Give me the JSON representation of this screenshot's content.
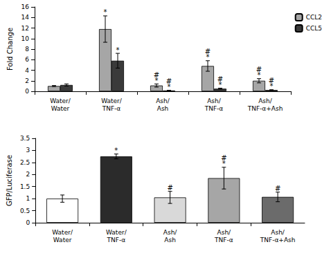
{
  "chart_data": [
    {
      "type": "bar",
      "y_label": "Fold Change",
      "categories": [
        "Water/\nWater",
        "Water/\nTNF-α",
        "Ash/\nAsh",
        "Ash/\nTNF-α",
        "Ash/\nTNF-α+Ash"
      ],
      "series": [
        {
          "name": "CCL2",
          "color": "#a6a6a6",
          "values": [
            1.0,
            11.8,
            1.1,
            4.8,
            2.0
          ],
          "errors": [
            0.1,
            2.5,
            0.3,
            1.0,
            0.4
          ],
          "annotations": [
            null,
            "*",
            "#\n*",
            "#\n*",
            "#\n*"
          ]
        },
        {
          "name": "CCL5",
          "color": "#3a3a3a",
          "values": [
            1.2,
            5.8,
            0.15,
            0.5,
            0.25
          ],
          "errors": [
            0.2,
            1.4,
            0.05,
            0.1,
            0.05
          ],
          "annotations": [
            null,
            "*",
            "#\n*",
            "#\n*",
            "#\n*"
          ]
        }
      ],
      "ylim": [
        0,
        16
      ],
      "yticks": [
        0,
        2,
        4,
        6,
        8,
        10,
        12,
        14,
        16
      ],
      "grid": false,
      "legend": "top-right"
    },
    {
      "type": "bar",
      "y_label": "GFP/Luciferase",
      "categories": [
        "Water/\nWater",
        "Water/\nTNF-α",
        "Ash/\nAsh",
        "Ash/\nTNF-α",
        "Ash/\nTNF-α+Ash"
      ],
      "values": [
        1.0,
        2.75,
        1.05,
        1.85,
        1.07
      ],
      "errors": [
        0.15,
        0.1,
        0.25,
        0.45,
        0.2
      ],
      "annotations": [
        null,
        "*",
        "#",
        "#\n*",
        "#"
      ],
      "colors": [
        "#ffffff",
        "#2b2b2b",
        "#d9d9d9",
        "#a6a6a6",
        "#6b6b6b"
      ],
      "ylim": [
        0,
        3.5
      ],
      "yticks": [
        0,
        0.5,
        1,
        1.5,
        2,
        2.5,
        3,
        3.5
      ],
      "grid": false
    }
  ]
}
